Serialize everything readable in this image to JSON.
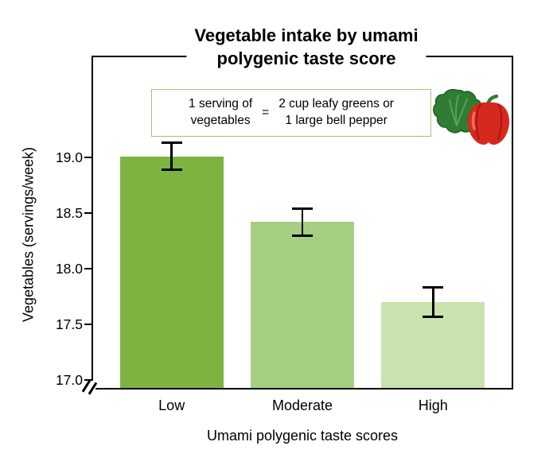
{
  "chart": {
    "title_line1": "Vegetable intake by umami",
    "title_line2": "polygenic taste score",
    "ylabel": "Vegetables (servings/week)",
    "xlabel": "Umami polygenic taste scores"
  },
  "legend": {
    "left": "1 serving of\nvegetables",
    "equals": "=",
    "right": "2 cup leafy greens or\n1 large bell pepper"
  },
  "icons": {
    "greens": "leafy-greens-icon",
    "pepper": "bell-pepper-icon"
  },
  "chart_data": {
    "type": "bar",
    "title": "Vegetable intake by umami polygenic taste score",
    "xlabel": "Umami polygenic taste scores",
    "ylabel": "Vegetables (servings/week)",
    "categories": [
      "Low",
      "Moderate",
      "High"
    ],
    "values": [
      19.01,
      18.42,
      17.7
    ],
    "errors": [
      0.12,
      0.12,
      0.13
    ],
    "bar_colors": [
      "#7db440",
      "#a6ce82",
      "#c9e3af"
    ],
    "error_color": "#000000",
    "yticks": [
      19.0,
      18.5,
      18.0,
      17.5,
      17.0
    ],
    "ytick_labels": [
      "19.0",
      "18.5",
      "18.0",
      "17.5",
      "17.0"
    ],
    "ylim": [
      17.0,
      19.3
    ],
    "axis_break": true,
    "grid": false,
    "legend_note": "1 serving of vegetables = 2 cup leafy greens or 1 large bell pepper"
  }
}
